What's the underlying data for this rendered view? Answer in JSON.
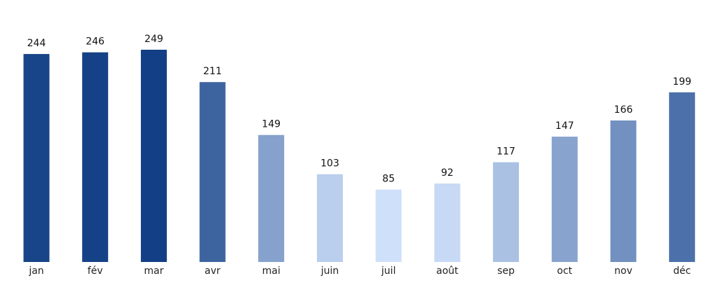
{
  "chart_data": {
    "type": "bar",
    "title": "",
    "xlabel": "",
    "ylabel": "",
    "categories": [
      "jan",
      "fév",
      "mar",
      "avr",
      "mai",
      "juin",
      "juil",
      "août",
      "sep",
      "oct",
      "nov",
      "déc"
    ],
    "values": [
      244,
      246,
      249,
      211,
      149,
      103,
      85,
      92,
      117,
      147,
      166,
      199
    ],
    "value_labels": [
      "244",
      "246",
      "249",
      "211",
      "149",
      "103",
      "85",
      "92",
      "117",
      "147",
      "166",
      "199"
    ],
    "ylim": [
      0,
      249
    ],
    "grid": false,
    "legend": "none",
    "color_scale": {
      "low": "#cfe0fa",
      "high": "#123f85"
    }
  }
}
